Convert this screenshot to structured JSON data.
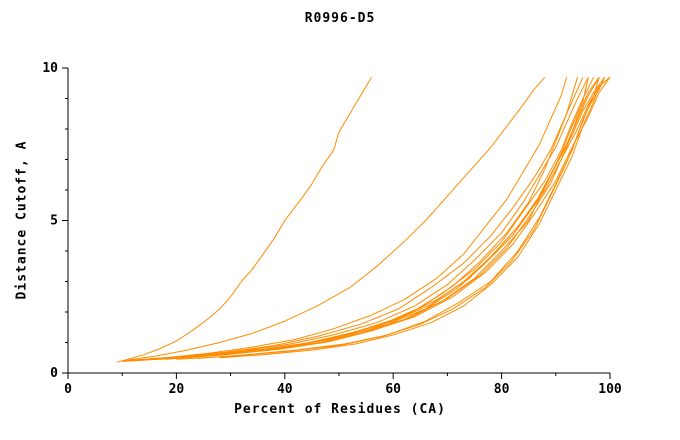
{
  "title": "R0996-D5",
  "colors": {
    "line": "#ff8c00",
    "axis": "#000000",
    "text": "#000000",
    "background": "#ffffff"
  },
  "chart_data": {
    "type": "line",
    "title": "R0996-D5",
    "xlabel": "Percent of Residues (CA)",
    "ylabel": "Distance Cutoff, A",
    "xlim": [
      0,
      100
    ],
    "ylim": [
      0,
      10
    ],
    "xticks_major": [
      0,
      20,
      40,
      60,
      80,
      100
    ],
    "xticks_minor": [
      10,
      30,
      50,
      70,
      90
    ],
    "yticks_major": [
      0,
      5,
      10
    ],
    "yticks_minor": [
      1,
      2,
      3,
      4,
      6,
      7,
      8,
      9
    ],
    "grid": false,
    "legend": "none",
    "line_color": "#ff8c00",
    "series": [
      {
        "points": [
          [
            9,
            0.35
          ],
          [
            11,
            0.45
          ],
          [
            14,
            0.6
          ],
          [
            17,
            0.8
          ],
          [
            20,
            1.05
          ],
          [
            23,
            1.4
          ],
          [
            26,
            1.8
          ],
          [
            28,
            2.1
          ],
          [
            30,
            2.5
          ],
          [
            32,
            3.0
          ],
          [
            34,
            3.4
          ],
          [
            36,
            3.9
          ],
          [
            38,
            4.4
          ],
          [
            40,
            5.0
          ],
          [
            43,
            5.7
          ],
          [
            45,
            6.2
          ],
          [
            47,
            6.8
          ],
          [
            49,
            7.3
          ],
          [
            50,
            7.9
          ],
          [
            52,
            8.5
          ],
          [
            54,
            9.1
          ],
          [
            56,
            9.7
          ]
        ]
      },
      {
        "points": [
          [
            10,
            0.4
          ],
          [
            16,
            0.55
          ],
          [
            22,
            0.75
          ],
          [
            28,
            1.0
          ],
          [
            34,
            1.3
          ],
          [
            40,
            1.7
          ],
          [
            46,
            2.2
          ],
          [
            52,
            2.8
          ],
          [
            57,
            3.5
          ],
          [
            62,
            4.3
          ],
          [
            66,
            5.0
          ],
          [
            70,
            5.8
          ],
          [
            74,
            6.6
          ],
          [
            78,
            7.4
          ],
          [
            81,
            8.1
          ],
          [
            84,
            8.8
          ],
          [
            86,
            9.3
          ],
          [
            88,
            9.7
          ]
        ]
      },
      {
        "points": [
          [
            10,
            0.4
          ],
          [
            18,
            0.5
          ],
          [
            26,
            0.65
          ],
          [
            34,
            0.85
          ],
          [
            42,
            1.1
          ],
          [
            49,
            1.45
          ],
          [
            56,
            1.9
          ],
          [
            62,
            2.4
          ],
          [
            68,
            3.1
          ],
          [
            73,
            3.9
          ],
          [
            77,
            4.8
          ],
          [
            81,
            5.7
          ],
          [
            84,
            6.6
          ],
          [
            87,
            7.5
          ],
          [
            89,
            8.3
          ],
          [
            91,
            9.1
          ],
          [
            92,
            9.7
          ]
        ]
      },
      {
        "points": [
          [
            11,
            0.4
          ],
          [
            20,
            0.52
          ],
          [
            29,
            0.68
          ],
          [
            38,
            0.9
          ],
          [
            46,
            1.2
          ],
          [
            54,
            1.6
          ],
          [
            61,
            2.1
          ],
          [
            67,
            2.8
          ],
          [
            73,
            3.6
          ],
          [
            78,
            4.5
          ],
          [
            82,
            5.4
          ],
          [
            86,
            6.4
          ],
          [
            89,
            7.3
          ],
          [
            91,
            8.1
          ],
          [
            93,
            8.9
          ],
          [
            95,
            9.7
          ]
        ]
      },
      {
        "points": [
          [
            12,
            0.42
          ],
          [
            22,
            0.55
          ],
          [
            32,
            0.72
          ],
          [
            41,
            0.95
          ],
          [
            49,
            1.25
          ],
          [
            57,
            1.65
          ],
          [
            64,
            2.2
          ],
          [
            70,
            2.9
          ],
          [
            75,
            3.7
          ],
          [
            80,
            4.6
          ],
          [
            84,
            5.6
          ],
          [
            87,
            6.5
          ],
          [
            90,
            7.4
          ],
          [
            92,
            8.2
          ],
          [
            94,
            9.0
          ],
          [
            96,
            9.7
          ]
        ]
      },
      {
        "points": [
          [
            10,
            0.38
          ],
          [
            21,
            0.5
          ],
          [
            31,
            0.65
          ],
          [
            40,
            0.85
          ],
          [
            48,
            1.1
          ],
          [
            56,
            1.45
          ],
          [
            63,
            1.95
          ],
          [
            69,
            2.6
          ],
          [
            75,
            3.4
          ],
          [
            80,
            4.3
          ],
          [
            84,
            5.3
          ],
          [
            88,
            6.3
          ],
          [
            91,
            7.3
          ],
          [
            93,
            8.2
          ],
          [
            95,
            9.0
          ],
          [
            97,
            9.7
          ]
        ]
      },
      {
        "points": [
          [
            13,
            0.42
          ],
          [
            24,
            0.55
          ],
          [
            34,
            0.72
          ],
          [
            43,
            0.92
          ],
          [
            51,
            1.2
          ],
          [
            59,
            1.6
          ],
          [
            66,
            2.1
          ],
          [
            72,
            2.8
          ],
          [
            77,
            3.6
          ],
          [
            82,
            4.5
          ],
          [
            86,
            5.5
          ],
          [
            89,
            6.5
          ],
          [
            92,
            7.5
          ],
          [
            94,
            8.3
          ],
          [
            96,
            9.1
          ],
          [
            98,
            9.7
          ]
        ]
      },
      {
        "points": [
          [
            14,
            0.45
          ],
          [
            25,
            0.58
          ],
          [
            35,
            0.75
          ],
          [
            44,
            0.98
          ],
          [
            52,
            1.3
          ],
          [
            60,
            1.7
          ],
          [
            67,
            2.25
          ],
          [
            73,
            3.0
          ],
          [
            78,
            3.8
          ],
          [
            83,
            4.8
          ],
          [
            87,
            5.8
          ],
          [
            90,
            6.8
          ],
          [
            93,
            7.8
          ],
          [
            95,
            8.6
          ],
          [
            97,
            9.2
          ],
          [
            99,
            9.7
          ]
        ]
      },
      {
        "points": [
          [
            15,
            0.45
          ],
          [
            26,
            0.6
          ],
          [
            36,
            0.78
          ],
          [
            45,
            1.0
          ],
          [
            53,
            1.35
          ],
          [
            61,
            1.8
          ],
          [
            68,
            2.4
          ],
          [
            74,
            3.1
          ],
          [
            79,
            4.0
          ],
          [
            84,
            5.0
          ],
          [
            88,
            6.0
          ],
          [
            91,
            7.0
          ],
          [
            94,
            8.0
          ],
          [
            96,
            8.8
          ],
          [
            98,
            9.4
          ],
          [
            100,
            9.7
          ]
        ]
      },
      {
        "points": [
          [
            20,
            0.45
          ],
          [
            30,
            0.55
          ],
          [
            40,
            0.7
          ],
          [
            50,
            0.9
          ],
          [
            58,
            1.2
          ],
          [
            65,
            1.6
          ],
          [
            71,
            2.1
          ],
          [
            77,
            2.8
          ],
          [
            82,
            3.7
          ],
          [
            86,
            4.7
          ],
          [
            89,
            5.8
          ],
          [
            92,
            6.9
          ],
          [
            94,
            7.8
          ],
          [
            96,
            8.7
          ],
          [
            98,
            9.3
          ],
          [
            99,
            9.7
          ]
        ]
      },
      {
        "points": [
          [
            28,
            0.5
          ],
          [
            36,
            0.6
          ],
          [
            45,
            0.75
          ],
          [
            53,
            0.95
          ],
          [
            60,
            1.25
          ],
          [
            67,
            1.65
          ],
          [
            73,
            2.2
          ],
          [
            78,
            2.9
          ],
          [
            83,
            3.8
          ],
          [
            87,
            4.9
          ],
          [
            90,
            6.0
          ],
          [
            93,
            7.1
          ],
          [
            95,
            8.1
          ],
          [
            97,
            8.9
          ],
          [
            98,
            9.4
          ],
          [
            100,
            9.7
          ]
        ]
      },
      {
        "points": [
          [
            24,
            0.48
          ],
          [
            33,
            0.6
          ],
          [
            42,
            0.75
          ],
          [
            51,
            0.95
          ],
          [
            59,
            1.25
          ],
          [
            66,
            1.7
          ],
          [
            72,
            2.3
          ],
          [
            78,
            3.0
          ],
          [
            83,
            4.0
          ],
          [
            87,
            5.1
          ],
          [
            90,
            6.2
          ],
          [
            93,
            7.3
          ],
          [
            95,
            8.3
          ],
          [
            97,
            9.1
          ],
          [
            98,
            9.7
          ]
        ]
      },
      {
        "points": [
          [
            16,
            0.45
          ],
          [
            27,
            0.58
          ],
          [
            37,
            0.75
          ],
          [
            46,
            0.98
          ],
          [
            54,
            1.3
          ],
          [
            62,
            1.75
          ],
          [
            69,
            2.35
          ],
          [
            75,
            3.1
          ],
          [
            80,
            4.0
          ],
          [
            85,
            5.0
          ],
          [
            88,
            6.1
          ],
          [
            91,
            7.2
          ],
          [
            93,
            8.1
          ],
          [
            95,
            8.9
          ],
          [
            96,
            9.7
          ]
        ]
      },
      {
        "points": [
          [
            12,
            0.4
          ],
          [
            23,
            0.52
          ],
          [
            33,
            0.68
          ],
          [
            42,
            0.9
          ],
          [
            50,
            1.2
          ],
          [
            58,
            1.6
          ],
          [
            65,
            2.15
          ],
          [
            71,
            2.85
          ],
          [
            76,
            3.65
          ],
          [
            81,
            4.6
          ],
          [
            85,
            5.6
          ],
          [
            88,
            6.7
          ],
          [
            90,
            7.6
          ],
          [
            92,
            8.5
          ],
          [
            94,
            9.7
          ]
        ]
      },
      {
        "points": [
          [
            17,
            0.45
          ],
          [
            28,
            0.6
          ],
          [
            38,
            0.78
          ],
          [
            47,
            1.0
          ],
          [
            55,
            1.35
          ],
          [
            63,
            1.8
          ],
          [
            70,
            2.45
          ],
          [
            76,
            3.2
          ],
          [
            81,
            4.1
          ],
          [
            85,
            5.1
          ],
          [
            89,
            6.2
          ],
          [
            92,
            7.4
          ],
          [
            94,
            8.4
          ],
          [
            96,
            9.2
          ],
          [
            98,
            9.7
          ]
        ]
      },
      {
        "points": [
          [
            18,
            0.45
          ],
          [
            29,
            0.6
          ],
          [
            39,
            0.78
          ],
          [
            48,
            1.02
          ],
          [
            56,
            1.38
          ],
          [
            64,
            1.85
          ],
          [
            71,
            2.5
          ],
          [
            77,
            3.3
          ],
          [
            82,
            4.2
          ],
          [
            86,
            5.2
          ],
          [
            90,
            6.3
          ],
          [
            93,
            7.4
          ],
          [
            96,
            8.4
          ],
          [
            98,
            9.2
          ],
          [
            100,
            9.7
          ]
        ]
      }
    ]
  }
}
